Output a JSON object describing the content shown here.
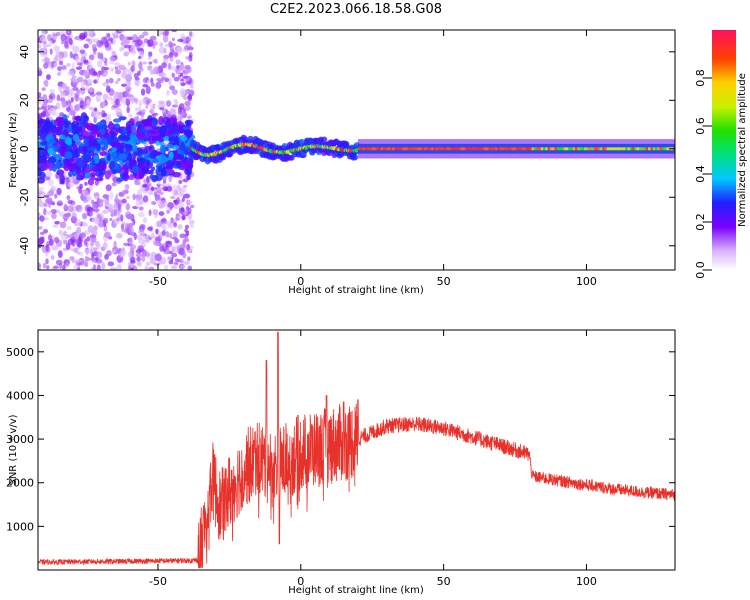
{
  "title": "C2E2.2023.066.18.58.G08",
  "chart_data": [
    {
      "type": "heatmap",
      "xlabel": "Height of straight line (km)",
      "ylabel": "Frequency (Hz)",
      "xlim": [
        -92,
        131
      ],
      "ylim": [
        -50,
        49
      ],
      "xticks": [
        -50,
        0,
        50,
        100
      ],
      "yticks": [
        -40,
        -20,
        0,
        20,
        40
      ],
      "colorbar": {
        "label": "Normalized spectral amplitude",
        "range": [
          0.0,
          1.0
        ],
        "ticks": [
          0.0,
          0.2,
          0.4,
          0.6,
          0.8
        ],
        "tick_labels": [
          "0.0",
          "0.2",
          "0.4",
          "0.6",
          "0.8"
        ]
      },
      "features": [
        {
          "region": "x < -38",
          "description": "scattered noise over full frequency band, dense blue/purple band near 0 Hz"
        },
        {
          "region": "-38 to 20",
          "description": "narrow band near 0 Hz with green/yellow/red peaks, slight oscillation"
        },
        {
          "region": "20 to 131",
          "description": "thin red/green line at 0 Hz within blue band of ~±4 Hz"
        }
      ]
    },
    {
      "type": "line",
      "xlabel": "Height of straight line (km)",
      "ylabel": "SNR (10 * v/v)",
      "xlim": [
        -92,
        131
      ],
      "ylim": [
        0,
        5500
      ],
      "xticks": [
        -50,
        0,
        50,
        100
      ],
      "yticks": [
        1000,
        2000,
        3000,
        4000,
        5000
      ],
      "series_color": "#e8312a",
      "envelope": {
        "x": [
          -92,
          -60,
          -36,
          -34,
          -31,
          -28,
          -25,
          -20,
          -15,
          -10,
          -5,
          0,
          10,
          20,
          30,
          40,
          50,
          60,
          70,
          80,
          81,
          90,
          100,
          110,
          120,
          131
        ],
        "y": [
          180,
          200,
          220,
          800,
          2100,
          1400,
          1800,
          2300,
          2600,
          2300,
          2500,
          2700,
          2850,
          3000,
          3300,
          3350,
          3250,
          3050,
          2850,
          2650,
          2150,
          2050,
          1950,
          1850,
          1780,
          1720
        ]
      },
      "spikes": [
        {
          "x": -12,
          "y": 4800
        },
        {
          "x": -8,
          "y": 5450
        },
        {
          "x": -7.5,
          "y": 600
        },
        {
          "x": 9,
          "y": 4000
        },
        {
          "x": 15,
          "y": 3850
        },
        {
          "x": 20,
          "y": 3900
        }
      ]
    }
  ]
}
